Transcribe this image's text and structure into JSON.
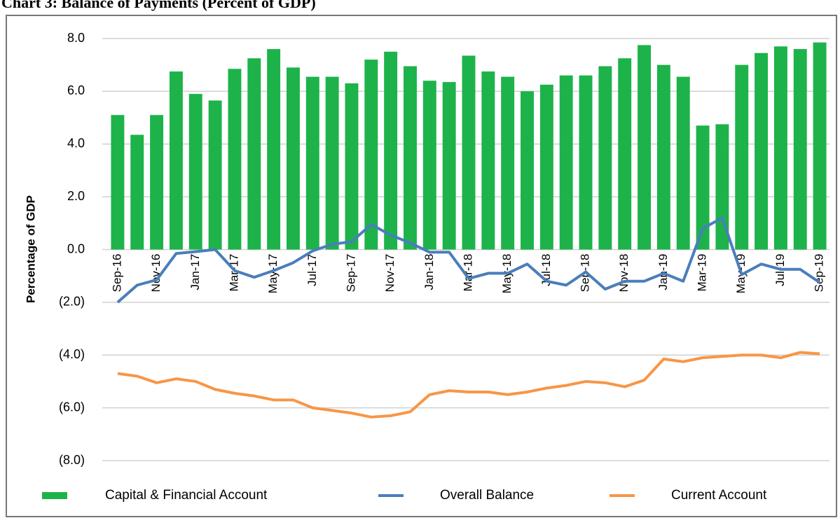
{
  "chart_data": {
    "type": "bar-line",
    "title": "Chart 3: Balance of Payments (Percent of GDP)",
    "y_label": "Percentage of GDP",
    "categories": [
      "Sep-16",
      null,
      "Nov-16",
      null,
      "Jan-17",
      null,
      "Mar-17",
      null,
      "May-17",
      null,
      "Jul-17",
      null,
      "Sep-17",
      null,
      "Nov-17",
      null,
      "Jan-18",
      null,
      "Mar-18",
      null,
      "May-18",
      null,
      "Jul-18",
      null,
      "Sep-18",
      null,
      "Nov-18",
      null,
      "Jan-19",
      null,
      "Mar-19",
      null,
      "May-19",
      null,
      "Jul-19",
      null,
      "Sep-19"
    ],
    "series": [
      {
        "name": "Capital & Financial Account",
        "kind": "bar",
        "color": "#1db34a",
        "values": [
          5.1,
          4.35,
          5.1,
          6.75,
          5.9,
          5.65,
          6.85,
          7.25,
          7.6,
          6.9,
          6.55,
          6.55,
          6.3,
          7.2,
          7.5,
          6.95,
          6.4,
          6.35,
          7.35,
          6.75,
          6.55,
          6.0,
          6.25,
          6.6,
          6.6,
          6.95,
          7.25,
          7.75,
          7.0,
          6.55,
          4.7,
          4.75,
          7.0,
          7.45,
          7.7,
          7.6,
          7.85
        ]
      },
      {
        "name": "Overall Balance",
        "kind": "line",
        "color": "#4a7ebb",
        "values": [
          -2.0,
          -1.35,
          -1.15,
          -0.15,
          -0.08,
          0.0,
          -0.8,
          -1.05,
          -0.8,
          -0.5,
          -0.05,
          0.2,
          0.3,
          0.95,
          0.55,
          0.25,
          -0.1,
          -0.1,
          -1.1,
          -0.9,
          -0.9,
          -0.55,
          -1.2,
          -1.35,
          -0.85,
          -1.5,
          -1.2,
          -1.2,
          -0.9,
          -1.2,
          0.8,
          1.2,
          -0.95,
          -0.55,
          -0.75,
          -0.75,
          -1.25
        ]
      },
      {
        "name": "Current Account",
        "kind": "line",
        "color": "#f79646",
        "values": [
          -4.7,
          -4.8,
          -5.05,
          -4.9,
          -5.0,
          -5.3,
          -5.45,
          -5.55,
          -5.7,
          -5.7,
          -6.0,
          -6.1,
          -6.2,
          -6.35,
          -6.3,
          -6.15,
          -5.5,
          -5.35,
          -5.4,
          -5.4,
          -5.5,
          -5.4,
          -5.25,
          -5.15,
          -5.0,
          -5.05,
          -5.2,
          -4.95,
          -4.15,
          -4.25,
          -4.1,
          -4.05,
          -4.0,
          -4.0,
          -4.1,
          -3.9,
          -3.95
        ]
      }
    ],
    "ylim": [
      -8,
      8
    ],
    "yticks": [
      {
        "value": 8,
        "label": "8.0"
      },
      {
        "value": 6,
        "label": "6.0"
      },
      {
        "value": 4,
        "label": "4.0"
      },
      {
        "value": 2,
        "label": "2.0"
      },
      {
        "value": 0,
        "label": "0.0"
      },
      {
        "value": -2,
        "label": "(2.0)"
      },
      {
        "value": -4,
        "label": "(4.0)"
      },
      {
        "value": -6,
        "label": "(6.0)"
      },
      {
        "value": -8,
        "label": "(8.0)"
      }
    ],
    "negative_tick_color": "#ff0000",
    "grid": true,
    "legend": "bottom"
  }
}
